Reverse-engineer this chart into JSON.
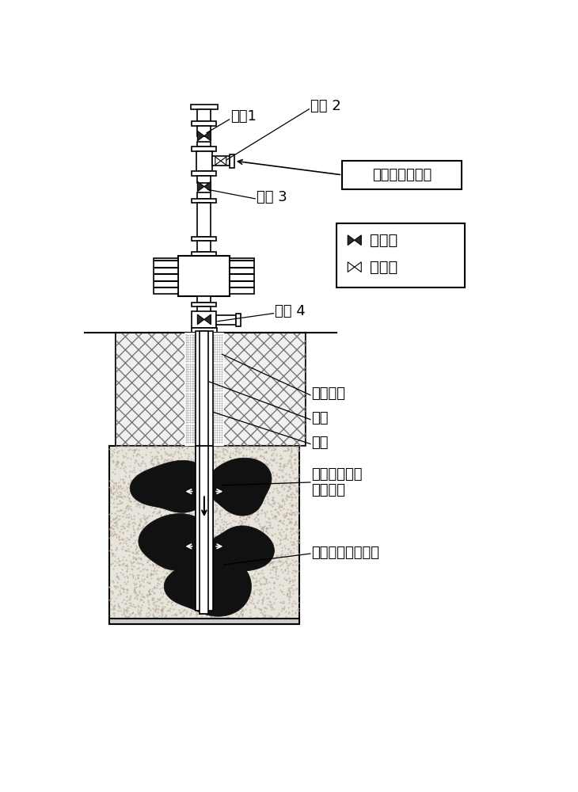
{
  "bg_color": "#ffffff",
  "line_color": "#000000",
  "labels": {
    "valve1": "阀门1",
    "valve2": "阀门 2",
    "valve3": "阀门 3",
    "valve4": "阀门 4",
    "co2_pump": "二氧化碳增压泵",
    "cement": "水泥返高",
    "tubing": "油管",
    "casing": "套管",
    "high_co2": "高压二氧化碳",
    "fracture": "压裂裂缝",
    "co2_zone": "二氧化碳注入区域",
    "valve_closed": "阀门关",
    "valve_open": "阀门开"
  }
}
